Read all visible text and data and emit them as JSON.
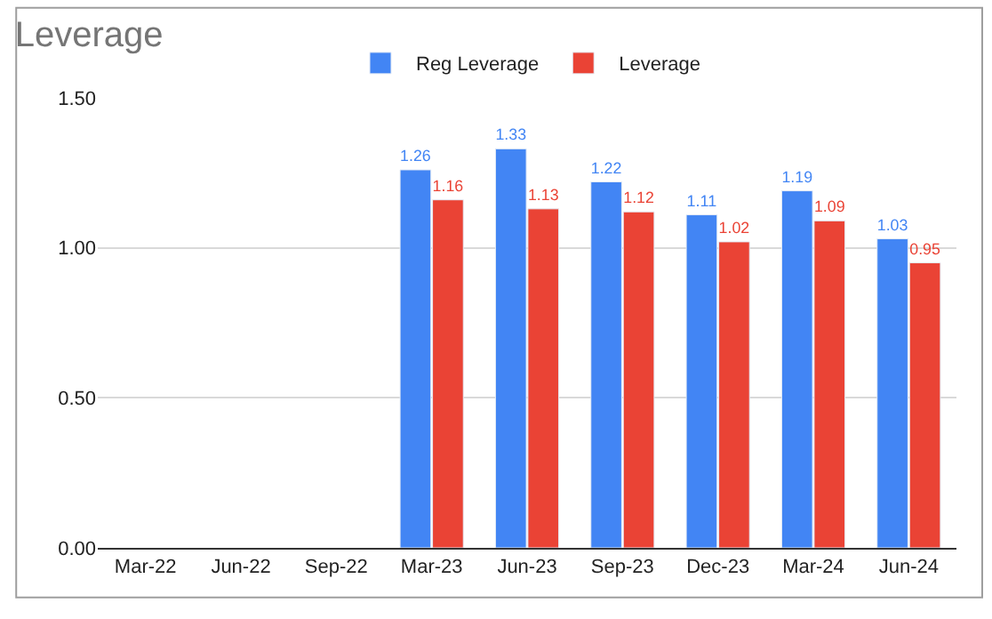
{
  "chart_data": {
    "type": "bar",
    "title": "Leverage",
    "categories": [
      "Mar-22",
      "Jun-22",
      "Sep-22",
      "Mar-23",
      "Jun-23",
      "Sep-23",
      "Dec-23",
      "Mar-24",
      "Jun-24"
    ],
    "series": [
      {
        "name": "Reg Leverage",
        "color": "#4285f4",
        "values": [
          null,
          null,
          null,
          1.26,
          1.33,
          1.22,
          1.11,
          1.19,
          1.03
        ]
      },
      {
        "name": "Leverage",
        "color": "#ea4335",
        "values": [
          null,
          null,
          null,
          1.16,
          1.13,
          1.12,
          1.02,
          1.09,
          0.95
        ]
      }
    ],
    "ylim": [
      0,
      1.5
    ],
    "yticks": [
      {
        "value": 0,
        "label": "0.00"
      },
      {
        "value": 0.5,
        "label": "0.50"
      },
      {
        "value": 1,
        "label": "1.00"
      },
      {
        "value": 1.5,
        "label": "1.50"
      }
    ],
    "grid": "y",
    "legend": "top",
    "data_labels": true
  }
}
